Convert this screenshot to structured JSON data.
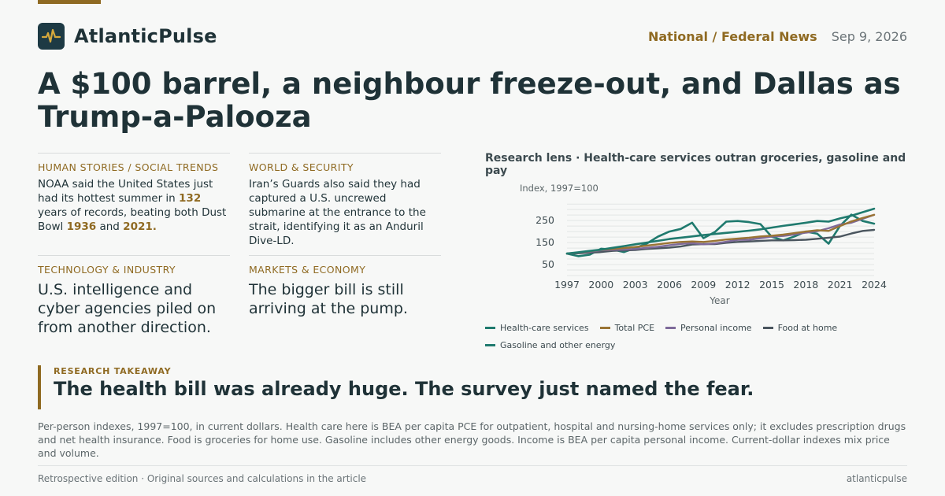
{
  "brand": {
    "name": "AtlanticPulse",
    "logo_icon": "pulse-icon"
  },
  "header": {
    "section": "National / Federal News",
    "date": "Sep 9, 2026"
  },
  "headline": "A $100 barrel, a neighbour freeze-out, and Dallas as Trump-a-Palooza",
  "cards": [
    {
      "label": "HUMAN STORIES / SOCIAL TRENDS",
      "t1": "NOAA said the United States just had its hottest summer in ",
      "h1": "132",
      "t2": " years of records, beating both Dust Bowl ",
      "h2": "1936",
      "t3": " and ",
      "h3": "2021."
    },
    {
      "label": "WORLD & SECURITY",
      "text": "Iran’s Guards also said they had captured a U.S. uncrewed submarine at the entrance to the strait, identifying it as an Anduril Dive-LD."
    },
    {
      "label": "TECHNOLOGY & INDUSTRY",
      "text": "U.S. intelligence and cyber agencies piled on from another direction."
    },
    {
      "label": "MARKETS & ECONOMY",
      "text": "The bigger bill is still arriving at the pump."
    }
  ],
  "chart_data": {
    "type": "line",
    "title": "Research lens · Health-care services outran groceries, gasoline and pay",
    "ylabel": "Index, 1997=100",
    "xlabel": "Year",
    "x": [
      1997,
      1998,
      1999,
      2000,
      2001,
      2002,
      2003,
      2004,
      2005,
      2006,
      2007,
      2008,
      2009,
      2010,
      2011,
      2012,
      2013,
      2014,
      2015,
      2016,
      2017,
      2018,
      2019,
      2020,
      2021,
      2022,
      2023,
      2024
    ],
    "x_ticks": [
      1997,
      2000,
      2003,
      2006,
      2009,
      2012,
      2015,
      2018,
      2021,
      2024
    ],
    "y_ticks": [
      50,
      150,
      250
    ],
    "xlim": [
      1997,
      2024
    ],
    "ylim": [
      0,
      340
    ],
    "grid": true,
    "legend_position": "bottom",
    "series": [
      {
        "name": "Health-care services",
        "color": "#1f7a6e",
        "values": [
          100,
          106,
          112,
          118,
          126,
          134,
          142,
          150,
          158,
          166,
          172,
          178,
          184,
          189,
          194,
          199,
          204,
          210,
          218,
          226,
          233,
          240,
          248,
          245,
          260,
          272,
          288,
          304
        ]
      },
      {
        "name": "Total PCE",
        "color": "#9a7434",
        "values": [
          100,
          105,
          111,
          117,
          121,
          125,
          130,
          136,
          142,
          148,
          153,
          155,
          153,
          158,
          164,
          168,
          172,
          178,
          181,
          186,
          193,
          200,
          206,
          203,
          225,
          246,
          262,
          276
        ]
      },
      {
        "name": "Personal income",
        "color": "#7e6a9a",
        "values": [
          100,
          104,
          108,
          115,
          117,
          118,
          121,
          126,
          131,
          138,
          144,
          147,
          142,
          146,
          154,
          162,
          163,
          170,
          177,
          180,
          187,
          195,
          202,
          215,
          232,
          240,
          258,
          276
        ]
      },
      {
        "name": "Food at home",
        "color": "#4a555e",
        "values": [
          100,
          101,
          104,
          107,
          112,
          114,
          116,
          121,
          124,
          127,
          132,
          141,
          143,
          143,
          149,
          153,
          155,
          158,
          160,
          160,
          161,
          163,
          167,
          172,
          177,
          191,
          203,
          208
        ]
      },
      {
        "name": "Gasoline and other energy",
        "color": "#1f7a6e",
        "values": [
          100,
          88,
          95,
          122,
          118,
          107,
          125,
          145,
          177,
          200,
          212,
          240,
          170,
          198,
          245,
          248,
          243,
          234,
          176,
          160,
          178,
          200,
          190,
          145,
          226,
          277,
          248,
          236
        ]
      }
    ]
  },
  "takeaway": {
    "label": "RESEARCH TAKEAWAY",
    "text": "The health bill was already huge. The survey just named the fear."
  },
  "note": "Per-person indexes, 1997=100, in current dollars. Health care here is BEA per capita PCE for outpatient, hospital and nursing-home services only; it excludes prescription drugs and net health insurance. Food is groceries for home use. Gasoline includes other energy goods. Income is BEA per capita personal income. Current-dollar indexes mix price and volume.",
  "footer": {
    "left": "Retrospective edition · Original sources and calculations in the article",
    "right": "atlanticpulse"
  }
}
